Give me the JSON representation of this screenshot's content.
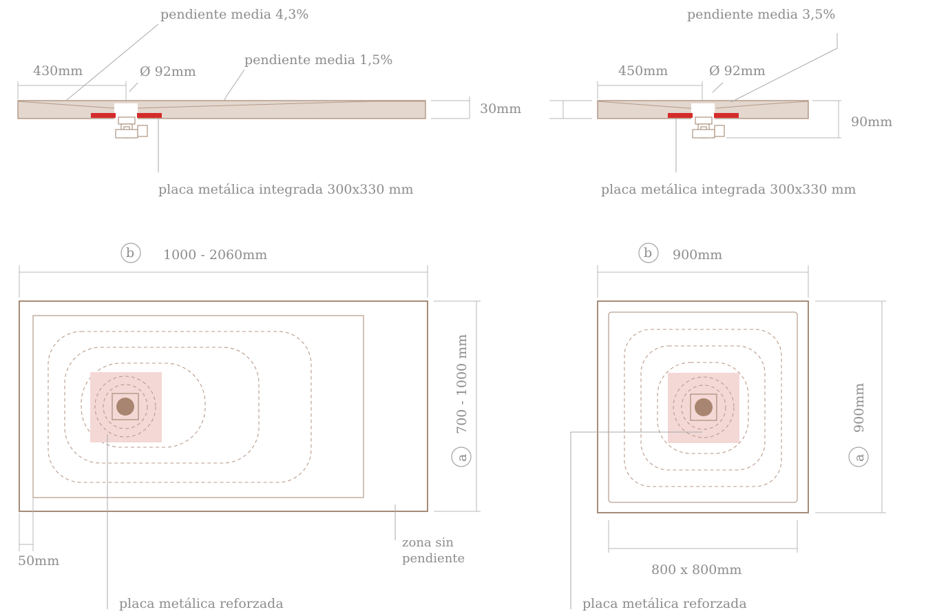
{
  "left_section": {
    "slope_main": "pendiente media 4,3%",
    "slope_secondary": "pendiente media 1,5%",
    "width_to_drain": "430mm",
    "drain_diameter": "Ø 92mm",
    "thickness": "30mm",
    "plate_integrated": "placa metálica integrada 300x330 mm"
  },
  "right_section": {
    "slope_main": "pendiente media 3,5%",
    "width_to_drain": "450mm",
    "drain_diameter": "Ø 92mm",
    "height": "90mm",
    "plate_integrated": "placa metálica integrada 300x330 mm"
  },
  "left_plan": {
    "b_marker": "b",
    "b_value": "1000 - 2060mm",
    "a_marker": "a",
    "a_value": "700 - 1000 mm",
    "border": "50mm",
    "flat_zone": "zona sin pendiente",
    "plate_reinforced": "placa metálica reforzada"
  },
  "right_plan": {
    "b_marker": "b",
    "b_value": "900mm",
    "a_marker": "a",
    "a_value": "900mm",
    "inner_size": "800 x 800mm",
    "plate_reinforced": "placa metálica reforzada"
  },
  "colors": {
    "tray_fill": "#e3d7ce",
    "tray_stroke": "#b39a88",
    "plate_red": "#d42b2b",
    "plate_zone_pink": "#f4d8d6",
    "text_gray": "#8c8c8c"
  }
}
